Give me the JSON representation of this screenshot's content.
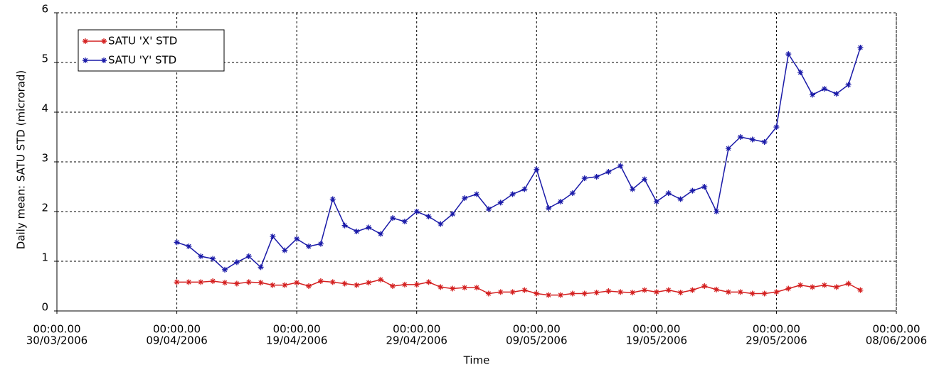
{
  "chart_data": {
    "type": "line",
    "x_label": "Time",
    "y_label": "Daily mean: SATU STD (microrad)",
    "x": [
      "2006-04-09",
      "2006-04-10",
      "2006-04-11",
      "2006-04-12",
      "2006-04-13",
      "2006-04-14",
      "2006-04-15",
      "2006-04-16",
      "2006-04-17",
      "2006-04-18",
      "2006-04-19",
      "2006-04-20",
      "2006-04-21",
      "2006-04-22",
      "2006-04-23",
      "2006-04-24",
      "2006-04-25",
      "2006-04-26",
      "2006-04-27",
      "2006-04-28",
      "2006-04-29",
      "2006-04-30",
      "2006-05-01",
      "2006-05-02",
      "2006-05-03",
      "2006-05-04",
      "2006-05-05",
      "2006-05-06",
      "2006-05-07",
      "2006-05-08",
      "2006-05-09",
      "2006-05-10",
      "2006-05-11",
      "2006-05-12",
      "2006-05-13",
      "2006-05-14",
      "2006-05-15",
      "2006-05-16",
      "2006-05-17",
      "2006-05-18",
      "2006-05-19",
      "2006-05-20",
      "2006-05-21",
      "2006-05-22",
      "2006-05-23",
      "2006-05-24",
      "2006-05-25",
      "2006-05-26",
      "2006-05-27",
      "2006-05-28",
      "2006-05-29",
      "2006-05-30",
      "2006-05-31",
      "2006-06-01",
      "2006-06-02",
      "2006-06-03",
      "2006-06-04",
      "2006-06-05"
    ],
    "series": [
      {
        "name": "SATU 'X' STD",
        "color": "#d42020",
        "values": [
          0.58,
          0.58,
          0.58,
          0.6,
          0.57,
          0.55,
          0.58,
          0.57,
          0.52,
          0.52,
          0.57,
          0.5,
          0.6,
          0.58,
          0.55,
          0.52,
          0.57,
          0.63,
          0.5,
          0.53,
          0.53,
          0.58,
          0.48,
          0.45,
          0.47,
          0.47,
          0.35,
          0.38,
          0.38,
          0.42,
          0.35,
          0.32,
          0.32,
          0.35,
          0.35,
          0.37,
          0.4,
          0.38,
          0.37,
          0.42,
          0.38,
          0.42,
          0.37,
          0.42,
          0.5,
          0.43,
          0.38,
          0.38,
          0.35,
          0.35,
          0.38,
          0.45,
          0.52,
          0.48,
          0.52,
          0.48,
          0.55,
          0.42
        ]
      },
      {
        "name": "SATU 'Y' STD",
        "color": "#1a1aa8",
        "values": [
          1.38,
          1.3,
          1.1,
          1.05,
          0.83,
          0.98,
          1.1,
          0.88,
          1.5,
          1.22,
          1.45,
          1.3,
          1.35,
          2.25,
          1.72,
          1.6,
          1.68,
          1.55,
          1.87,
          1.8,
          2.0,
          1.9,
          1.75,
          1.95,
          2.27,
          2.35,
          2.05,
          2.18,
          2.35,
          2.45,
          2.85,
          2.07,
          2.2,
          2.37,
          2.67,
          2.7,
          2.8,
          2.92,
          2.45,
          2.65,
          2.2,
          2.37,
          2.25,
          2.42,
          2.5,
          2.0,
          3.27,
          3.5,
          3.45,
          3.4,
          3.7,
          5.17,
          4.8,
          4.35,
          4.47,
          4.37,
          4.55,
          5.3
        ]
      }
    ],
    "xlim": [
      "2006-03-30",
      "2006-06-08"
    ],
    "xticks": [
      {
        "value": "2006-03-30",
        "label": [
          "00:00.00",
          "30/03/2006"
        ]
      },
      {
        "value": "2006-04-09",
        "label": [
          "00:00.00",
          "09/04/2006"
        ]
      },
      {
        "value": "2006-04-19",
        "label": [
          "00:00.00",
          "19/04/2006"
        ]
      },
      {
        "value": "2006-04-29",
        "label": [
          "00:00.00",
          "29/04/2006"
        ]
      },
      {
        "value": "2006-05-09",
        "label": [
          "00:00.00",
          "09/05/2006"
        ]
      },
      {
        "value": "2006-05-19",
        "label": [
          "00:00.00",
          "19/05/2006"
        ]
      },
      {
        "value": "2006-05-29",
        "label": [
          "00:00.00",
          "29/05/2006"
        ]
      },
      {
        "value": "2006-06-08",
        "label": [
          "00:00.00",
          "08/06/2006"
        ]
      }
    ],
    "ylim": [
      0,
      6
    ],
    "yticks": [
      0,
      1,
      2,
      3,
      4,
      5,
      6
    ],
    "grid": true,
    "legend": "upper left"
  }
}
